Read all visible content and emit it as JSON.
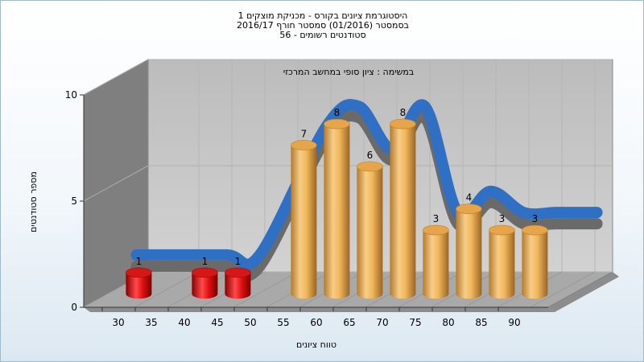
{
  "chart_data": {
    "type": "bar",
    "title_lines": [
      "היסטוגרמת ציונים בקורס - מכניקת מוצקים 1",
      "בסמסטר  (01/2016)  סמסטר חורף 2016/17",
      "סטודנטים רשומים - 56"
    ],
    "subtitle": "במשימה : ציון סופי במחשב המרכזי",
    "xlabel": "טווח ציונים",
    "ylabel": "מספר סטודנטים",
    "x_tick_labels": [
      "30",
      "35",
      "40",
      "45",
      "50",
      "55",
      "60",
      "65",
      "70",
      "75",
      "80",
      "85",
      "90"
    ],
    "y_ticks": [
      0,
      5,
      10
    ],
    "ylim": [
      0,
      10
    ],
    "categories": [
      "30",
      "40",
      "45",
      "55",
      "60",
      "65",
      "70",
      "75",
      "80",
      "85",
      "90"
    ],
    "values": [
      1,
      1,
      1,
      7,
      8,
      6,
      8,
      3,
      4,
      3,
      3
    ],
    "failing_threshold": 55,
    "colors": {
      "failing": "#e01010",
      "passing": "#e8a84a",
      "curve": "#2f6fc4",
      "floor": "#a8a8a8",
      "back_wall": "#c6c6c6",
      "side_wall": "#7a7a7a"
    },
    "grid": true
  }
}
